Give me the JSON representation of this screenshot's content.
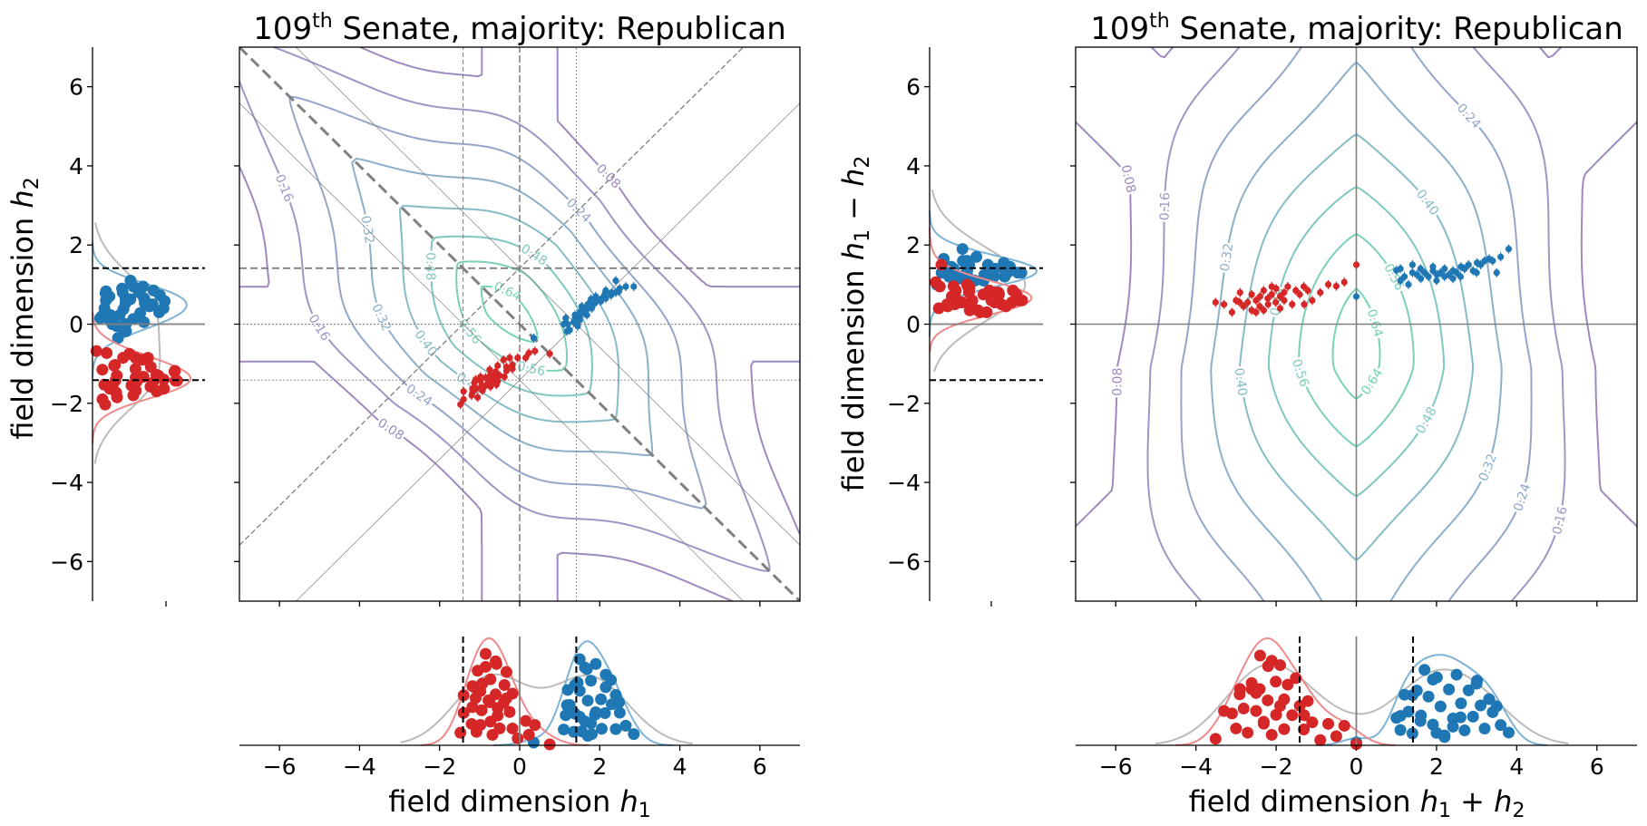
{
  "chart_data": {
    "type": "scatter",
    "title": {
      "number": "109",
      "sup": "th",
      "rest": " Senate, majority: Republican"
    },
    "panels": {
      "left": {
        "xlabel": {
          "text": "field dimension ",
          "v1": "h",
          "s1": "1"
        },
        "ylabel": {
          "text": "field dimension ",
          "v1": "h",
          "s1": "2"
        }
      },
      "right": {
        "xlabel": {
          "text": "field dimension ",
          "v1": "h",
          "s1": "1",
          "op": " + ",
          "v2": "h",
          "s2": "2"
        },
        "ylabel": {
          "text": "field dimension ",
          "v1": "h",
          "s1": "1",
          "op": " − ",
          "v2": "h",
          "s2": "2"
        }
      }
    },
    "xlim": [
      -7,
      7
    ],
    "ylim": [
      -7,
      7
    ],
    "ticks": [
      -6,
      -4,
      -2,
      0,
      2,
      4,
      6
    ],
    "tick_labels": [
      "−6",
      "−4",
      "−2",
      "0",
      "2",
      "4",
      "6"
    ],
    "threshold": 1.414,
    "contour_levels": [
      0.08,
      0.16,
      0.24,
      0.32,
      0.4,
      0.48,
      0.56,
      0.64
    ],
    "contour_level_labels": [
      "0.08",
      "0.16",
      "0.24",
      "0.32",
      "0.40",
      "0.48",
      "0.56",
      "0.64"
    ],
    "contour_colors": [
      "#9e8abf",
      "#9b98c5",
      "#94a6c9",
      "#8cb0c9",
      "#86bcc6",
      "#80c7c0",
      "#7ccfba",
      "#78d4b5"
    ],
    "reference_line_color": "#808080",
    "total_kde_color": "#bbbbbb",
    "series": [
      {
        "color": "#1f77b4",
        "kde_color": "#7fb3d5",
        "points_h1_h2": [
          [
            1.18,
            -0.18
          ],
          [
            1.1,
            0.0
          ],
          [
            1.2,
            0.0
          ],
          [
            1.15,
            0.15
          ],
          [
            1.35,
            0.05
          ],
          [
            1.38,
            0.13
          ],
          [
            1.38,
            0.23
          ],
          [
            1.5,
            0.2
          ],
          [
            1.5,
            0.3
          ],
          [
            1.63,
            0.28
          ],
          [
            1.63,
            0.38
          ],
          [
            1.7,
            0.4
          ],
          [
            1.8,
            0.4
          ],
          [
            1.78,
            0.53
          ],
          [
            1.88,
            0.53
          ],
          [
            1.9,
            0.6
          ],
          [
            2.03,
            0.58
          ],
          [
            2.05,
            0.65
          ],
          [
            2.15,
            0.65
          ],
          [
            2.13,
            0.78
          ],
          [
            2.28,
            0.73
          ],
          [
            2.3,
            0.8
          ],
          [
            2.4,
            0.8
          ],
          [
            2.48,
            0.83
          ],
          [
            2.85,
            0.95
          ],
          [
            1.55,
            0.45
          ],
          [
            1.45,
            -0.05
          ],
          [
            1.9,
            0.7
          ],
          [
            2.15,
            0.85
          ],
          [
            1.25,
            -0.15
          ],
          [
            1.78,
            0.63
          ],
          [
            1.68,
            0.23
          ],
          [
            0.35,
            -0.35
          ],
          [
            1.7,
            0.5
          ],
          [
            2.5,
            0.9
          ],
          [
            1.5,
            0.1
          ],
          [
            2.4,
            1.1
          ],
          [
            2.65,
            0.95
          ]
        ]
      },
      {
        "color": "#d62728",
        "kde_color": "#ee8a8b",
        "points_h1_h2": [
          [
            -1.4,
            -1.9
          ],
          [
            -1.4,
            -1.7
          ],
          [
            -1.2,
            -1.8
          ],
          [
            -1.05,
            -1.85
          ],
          [
            -1.18,
            -1.63
          ],
          [
            -1.08,
            -1.63
          ],
          [
            -1.13,
            -1.48
          ],
          [
            -0.95,
            -1.55
          ],
          [
            -0.85,
            -1.55
          ],
          [
            -0.98,
            -1.43
          ],
          [
            -0.73,
            -1.58
          ],
          [
            -0.85,
            -1.35
          ],
          [
            -0.78,
            -1.43
          ],
          [
            -0.68,
            -1.43
          ],
          [
            -0.73,
            -1.28
          ],
          [
            -0.55,
            -1.45
          ],
          [
            -0.6,
            -1.3
          ],
          [
            -0.6,
            -1.2
          ],
          [
            -0.5,
            -1.3
          ],
          [
            -0.38,
            -1.33
          ],
          [
            -0.55,
            -1.05
          ],
          [
            -0.33,
            -1.18
          ],
          [
            -0.33,
            -1.08
          ],
          [
            -0.18,
            -1.13
          ],
          [
            -0.18,
            -1.03
          ],
          [
            -0.25,
            -0.85
          ],
          [
            -0.05,
            -0.85
          ],
          [
            0.15,
            -0.85
          ],
          [
            0.23,
            -0.73
          ],
          [
            0.38,
            -0.68
          ],
          [
            -1.1,
            -1.4
          ],
          [
            -0.98,
            -1.33
          ],
          [
            -1.18,
            -1.73
          ],
          [
            -0.75,
            -1.15
          ],
          [
            0.75,
            -0.75
          ],
          [
            -0.93,
            -1.68
          ],
          [
            -1.48,
            -2.03
          ],
          [
            -0.58,
            -1.53
          ],
          [
            -0.4,
            -0.9
          ]
        ]
      }
    ]
  }
}
